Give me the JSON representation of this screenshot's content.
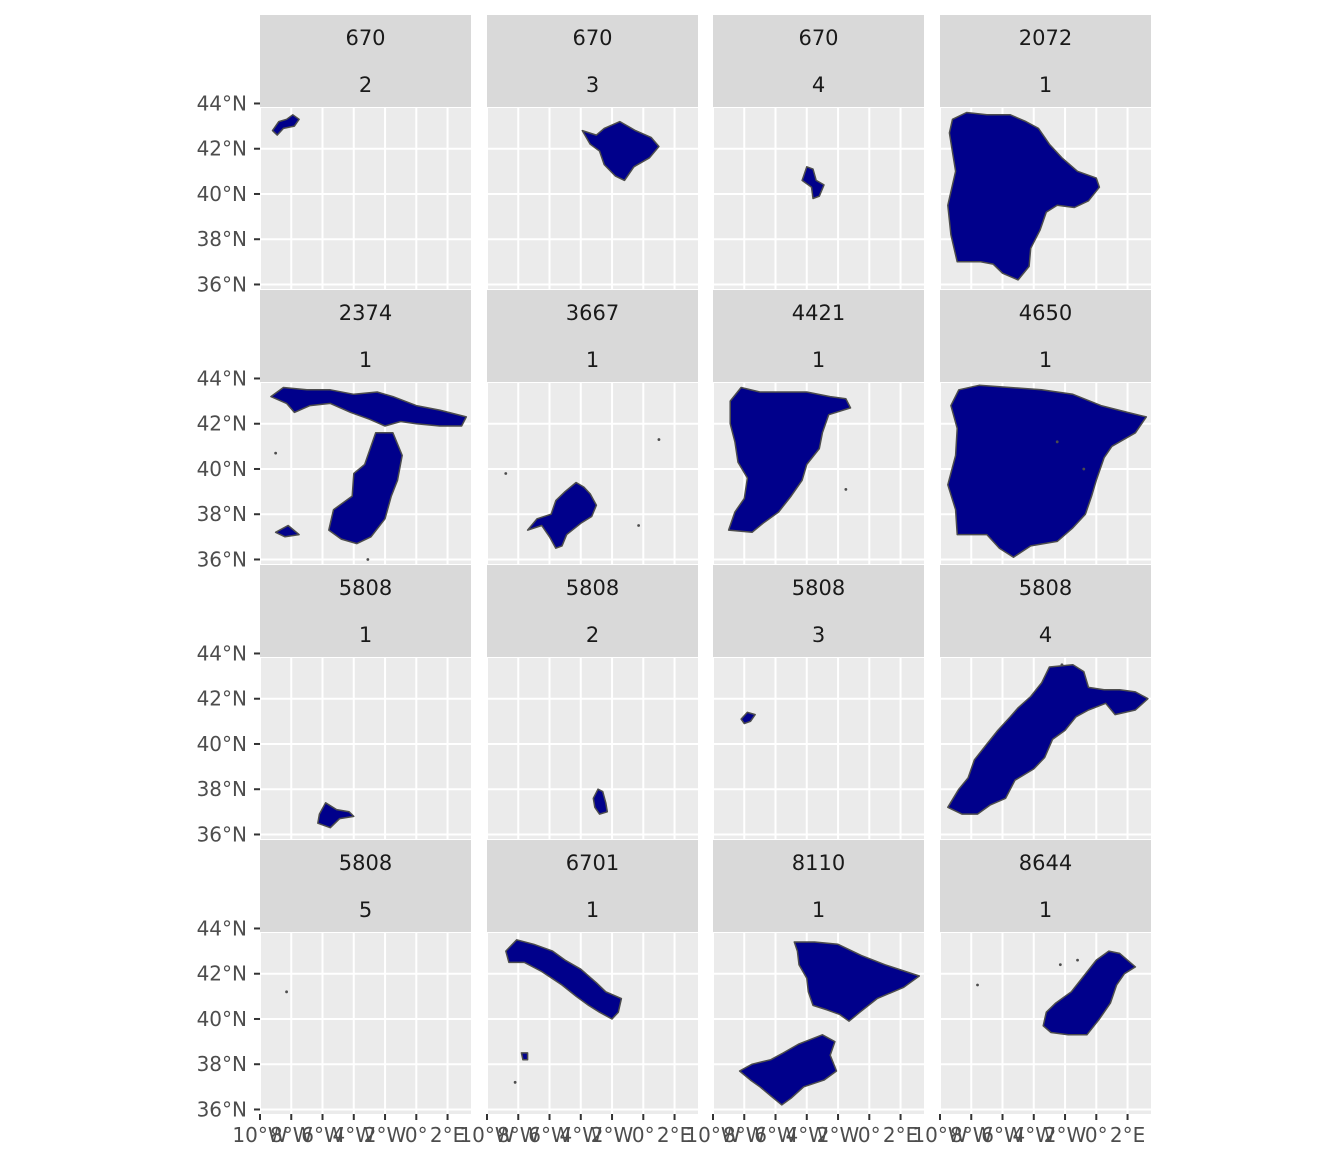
{
  "chart_data": {
    "type": "map-facet",
    "facet_rows": 4,
    "facet_cols": 4,
    "region_fill": "#00008b",
    "region_stroke": "#4d4d4d",
    "panel_background": "#ebebeb",
    "strip_background": "#d9d9d9",
    "grid_color": "#ffffff",
    "lon_range": [
      -10,
      3.5
    ],
    "lat_range": [
      35.8,
      43.8
    ],
    "lon_breaks": [
      -10,
      -8,
      -6,
      -4,
      -2,
      0,
      2
    ],
    "lat_breaks": [
      36,
      38,
      40,
      42,
      44
    ],
    "xtick_labels": [
      "10°W",
      "8°W",
      "6°W",
      "4°W",
      "2°W",
      "0°",
      "2°E"
    ],
    "ytick_labels": [
      "36°N",
      "38°N",
      "40°N",
      "42°N",
      "44°N"
    ],
    "facets": [
      {
        "label1": "670",
        "label2": "2",
        "region": "small cluster in far northwest, approx. 9°W–7.5°W, 42.6°N–43.5°N"
      },
      {
        "label1": "670",
        "label2": "3",
        "region": "northeast interior, approx. 4°W–1°E, 40.4°N–43.3°N"
      },
      {
        "label1": "670",
        "label2": "4",
        "region": "small central patch, approx. 4.3°W–2.9°W, 39.8°N–41.2°N"
      },
      {
        "label1": "2072",
        "label2": "1",
        "region": "western and central interior, approx. 9.5°W–0.2°E, 36.1°N–43.6°N"
      },
      {
        "label1": "2374",
        "label2": "1",
        "region": "north coast and east-central belt plus south coast patches, approx. 9.3°W–3.2°E, 36.2°N–43.6°N"
      },
      {
        "label1": "3667",
        "label2": "1",
        "region": "southwest interior, approx. 7.5°W–3°W, 36.5°N–39.4°N"
      },
      {
        "label1": "4421",
        "label2": "1",
        "region": "west half, approx. 9.5°W–2.5°E, 37.1°N–43.6°N"
      },
      {
        "label1": "4650",
        "label2": "1",
        "region": "nearly whole peninsula, approx. 9.5°W–3.3°E, 36.1°N–43.7°N"
      },
      {
        "label1": "5808",
        "label2": "1",
        "region": "south coast patch, approx. 6.3°W–3.8°W, 36.3°N–37.4°N"
      },
      {
        "label1": "5808",
        "label2": "2",
        "region": "south-east patch, approx. 3.3°W–2.3°W, 36.9°N–38.0°N"
      },
      {
        "label1": "5808",
        "label2": "3",
        "region": "tiny central-west patch, approx. 8.3°W–7.2°W, 40.9°N–41.5°N"
      },
      {
        "label1": "5808",
        "label2": "4",
        "region": "diagonal band southwest to northeast, approx. 9.5°W–3.3°E, 37.1°N–43.5°N"
      },
      {
        "label1": "5808",
        "label2": "5",
        "region": "single point, approx. 8.3°W, 41.2°N"
      },
      {
        "label1": "6701",
        "label2": "1",
        "region": "north-west to central, approx. 9°W–1.5°W, 39.9°N–43.4°N"
      },
      {
        "label1": "8110",
        "label2": "1",
        "region": "north-east block and south-central block, approx. 8.5°W–3.2°E, 36.2°N–43.4°N"
      },
      {
        "label1": "8644",
        "label2": "1",
        "region": "north-east interior, approx. 3.5°W–2.5°E, 39.3°N–43.0°N"
      }
    ]
  }
}
